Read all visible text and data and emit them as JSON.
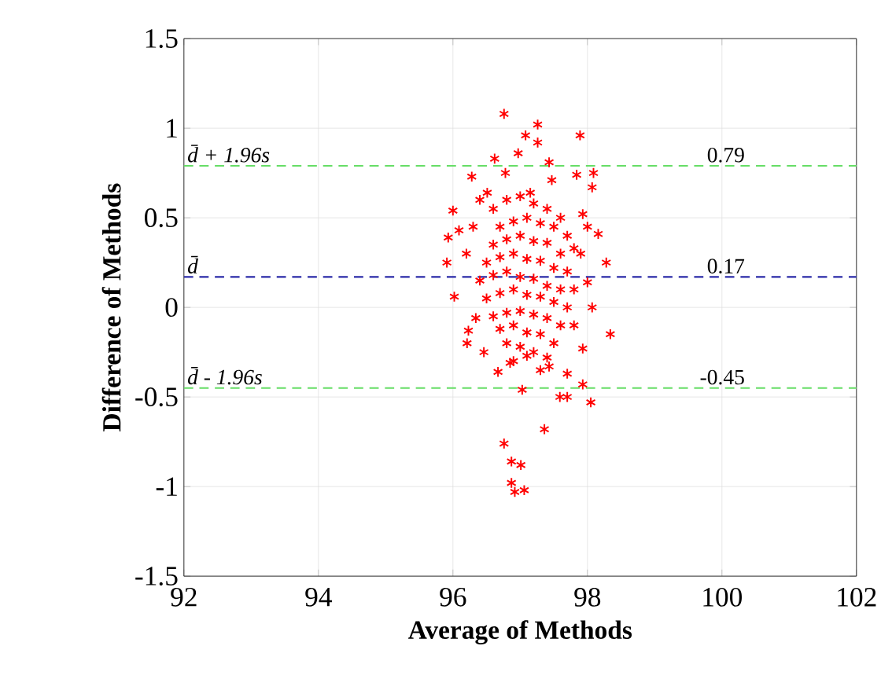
{
  "chart_data": {
    "type": "scatter",
    "xlabel": "Average of Methods",
    "ylabel": "Difference of Methods",
    "xlim": [
      92,
      102
    ],
    "ylim": [
      -1.5,
      1.5
    ],
    "xticks": [
      92,
      94,
      96,
      98,
      100,
      102
    ],
    "yticks": [
      -1.5,
      -1,
      -0.5,
      0,
      0.5,
      1,
      1.5
    ],
    "grid": true,
    "marker": "cross",
    "series": [
      {
        "color": "#ff0000",
        "x": [
          96.02,
          98.34,
          98.05,
          97.36,
          96.76,
          96.87,
          97.01,
          96.87,
          97.06,
          96.92,
          97.93,
          97.7,
          97.59,
          97.03,
          96.67,
          96.85,
          96.46,
          96.21,
          96.23,
          96.34,
          97.43,
          97.7,
          97.93,
          98.07,
          98.0,
          96.76,
          97.26,
          97.89,
          97.08,
          97.26,
          96.97,
          96.62,
          97.43,
          96.28,
          97.47,
          97.84,
          98.09,
          98.07,
          96.0,
          95.93,
          95.91,
          98.28,
          98.16,
          97.93,
          96.09,
          96.51,
          96.78,
          97.15,
          96.6,
          96.8,
          97.0,
          97.2,
          97.4,
          97.6,
          96.7,
          96.9,
          97.1,
          97.3,
          97.5,
          97.7,
          96.6,
          96.8,
          97.0,
          97.2,
          97.4,
          97.6,
          97.8,
          96.5,
          96.7,
          96.9,
          97.1,
          97.3,
          97.5,
          97.7,
          96.4,
          96.6,
          96.8,
          97.0,
          97.2,
          97.4,
          97.6,
          97.8,
          96.5,
          96.7,
          96.9,
          97.1,
          97.3,
          97.5,
          97.7,
          96.6,
          96.8,
          97.0,
          97.2,
          97.4,
          97.6,
          96.7,
          96.9,
          97.1,
          97.3,
          97.5,
          96.8,
          97.0,
          97.2,
          97.4,
          96.9,
          97.1,
          97.3,
          96.3,
          96.2,
          97.9,
          98.0,
          96.4,
          97.8
        ],
        "values": [
          0.06,
          -0.15,
          -0.53,
          -0.68,
          -0.76,
          -0.86,
          -0.88,
          -0.98,
          -1.02,
          -1.03,
          -0.43,
          -0.5,
          -0.5,
          -0.46,
          -0.36,
          -0.31,
          -0.25,
          -0.2,
          -0.13,
          -0.06,
          -0.33,
          -0.37,
          -0.23,
          0.0,
          0.14,
          1.08,
          1.02,
          0.96,
          0.96,
          0.92,
          0.86,
          0.83,
          0.81,
          0.73,
          0.71,
          0.74,
          0.75,
          0.67,
          0.54,
          0.39,
          0.25,
          0.25,
          0.41,
          0.52,
          0.43,
          0.64,
          0.75,
          0.64,
          0.55,
          0.6,
          0.62,
          0.58,
          0.55,
          0.5,
          0.45,
          0.48,
          0.5,
          0.47,
          0.45,
          0.4,
          0.35,
          0.38,
          0.4,
          0.37,
          0.36,
          0.3,
          0.33,
          0.25,
          0.28,
          0.3,
          0.27,
          0.26,
          0.22,
          0.2,
          0.15,
          0.18,
          0.2,
          0.17,
          0.16,
          0.12,
          0.1,
          0.1,
          0.05,
          0.08,
          0.1,
          0.07,
          0.06,
          0.03,
          0.0,
          -0.05,
          -0.03,
          -0.02,
          -0.04,
          -0.06,
          -0.1,
          -0.12,
          -0.1,
          -0.14,
          -0.15,
          -0.2,
          -0.2,
          -0.22,
          -0.25,
          -0.28,
          -0.3,
          -0.27,
          -0.35,
          0.45,
          0.3,
          0.3,
          0.45,
          0.6,
          -0.1
        ]
      }
    ],
    "ref_lines": [
      {
        "axis": "y",
        "value": 0.79,
        "label": "d̄ + 1.96s",
        "color": "#66dd66",
        "line_style": "dashed"
      },
      {
        "axis": "y",
        "value": 0.17,
        "label": "d̄",
        "color": "#2a2aa8",
        "line_style": "dashed"
      },
      {
        "axis": "y",
        "value": -0.45,
        "label": "d̄ - 1.96s",
        "color": "#66dd66",
        "line_style": "dashed"
      }
    ],
    "annotations": [
      {
        "text": "0.79",
        "y": 0.79
      },
      {
        "text": "0.17",
        "y": 0.17
      },
      {
        "text": "-0.45",
        "y": -0.45
      }
    ]
  }
}
